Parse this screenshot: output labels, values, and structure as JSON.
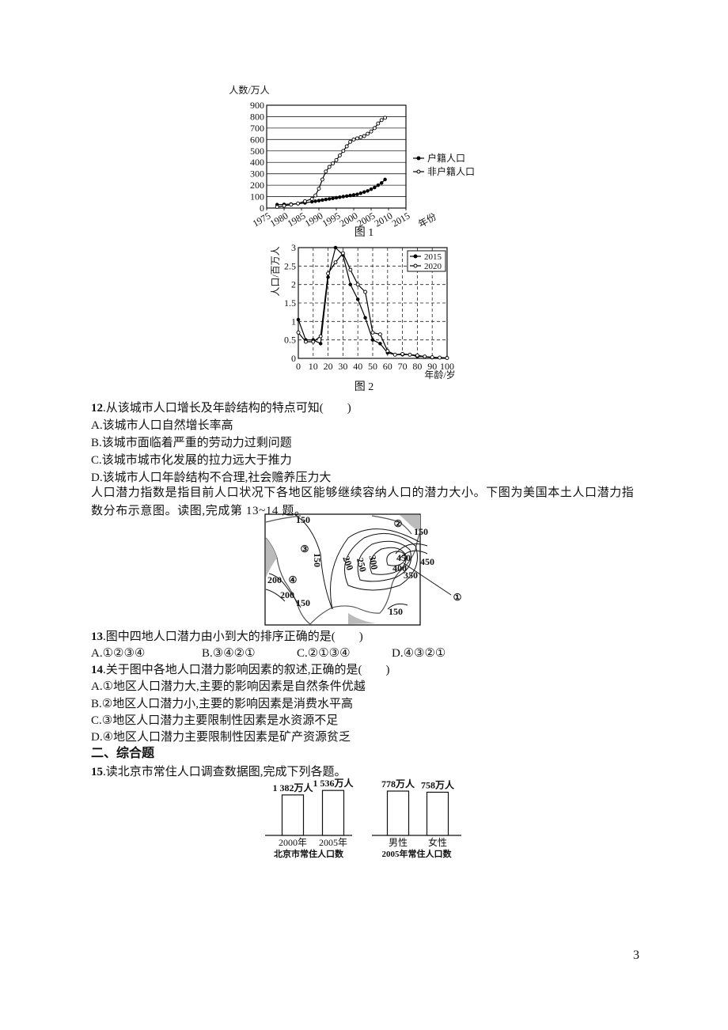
{
  "chart_data": [
    {
      "type": "line",
      "y_label": "人数/万人",
      "x_label": "年份",
      "caption": "图 1",
      "x": [
        1978,
        1980,
        1982,
        1984,
        1986,
        1988,
        1989,
        1990,
        1991,
        1992,
        1993,
        1994,
        1995,
        1996,
        1997,
        1998,
        1999,
        2000,
        2001,
        2002,
        2003,
        2004,
        2005,
        2006,
        2007,
        2008,
        2009
      ],
      "series": [
        {
          "name": "户籍人口",
          "color": "#000000",
          "marker": "filled",
          "values": [
            30,
            32,
            35,
            38,
            45,
            55,
            60,
            65,
            70,
            75,
            80,
            85,
            90,
            95,
            100,
            105,
            110,
            115,
            120,
            130,
            140,
            150,
            165,
            180,
            200,
            220,
            250
          ]
        },
        {
          "name": "非户籍人口",
          "color": "#000000",
          "marker": "open",
          "values": [
            10,
            20,
            30,
            40,
            60,
            80,
            110,
            170,
            250,
            320,
            360,
            390,
            420,
            460,
            500,
            540,
            580,
            600,
            610,
            620,
            630,
            650,
            670,
            700,
            740,
            770,
            790
          ]
        }
      ],
      "xlim": [
        1975,
        2015
      ],
      "xticks": [
        1975,
        1980,
        1985,
        1990,
        1995,
        2000,
        2005,
        2010,
        2015
      ],
      "ylim": [
        0,
        900
      ],
      "yticks": [
        0,
        100,
        200,
        300,
        400,
        500,
        600,
        700,
        800,
        900
      ],
      "grid": "y",
      "grid_style": "solid",
      "legend": "right"
    },
    {
      "type": "line",
      "y_label": "人口/百万人",
      "x_label": "年龄/岁",
      "caption": "图 2",
      "x": [
        0,
        5,
        10,
        15,
        20,
        25,
        30,
        35,
        40,
        45,
        50,
        55,
        60,
        65,
        70,
        75,
        80,
        85,
        90,
        95,
        100
      ],
      "series": [
        {
          "name": "2015",
          "color": "#000000",
          "marker": "filled",
          "values": [
            1.05,
            0.5,
            0.5,
            0.4,
            2.2,
            3.0,
            2.8,
            2.0,
            1.6,
            1.1,
            0.5,
            0.4,
            0.15,
            0.1,
            0.1,
            0.1,
            0.05,
            0.05,
            0.02,
            0.02,
            0.01
          ]
        },
        {
          "name": "2020",
          "color": "#000000",
          "marker": "open",
          "values": [
            0.7,
            0.45,
            0.45,
            0.6,
            2.3,
            2.6,
            2.85,
            2.4,
            2.0,
            1.8,
            0.7,
            0.65,
            0.2,
            0.1,
            0.12,
            0.1,
            0.08,
            0.05,
            0.03,
            0.02,
            0.01
          ]
        }
      ],
      "xlim": [
        0,
        100
      ],
      "xticks": [
        0,
        10,
        20,
        30,
        40,
        50,
        60,
        70,
        80,
        90,
        100
      ],
      "ylim": [
        0,
        3
      ],
      "yticks": [
        0,
        0.5,
        1,
        1.5,
        2,
        2.5,
        3
      ],
      "grid": "both",
      "grid_style": "dashed",
      "legend": "top-right"
    },
    {
      "type": "bar",
      "caption": "北京市常住人口数",
      "categories": [
        "2000年",
        "2005年"
      ],
      "values": [
        1382,
        1536
      ],
      "value_labels": [
        "1 382万人",
        "1 536万人"
      ],
      "color": "#ffffff"
    },
    {
      "type": "bar",
      "caption": "2005年常住人口数",
      "categories": [
        "男性",
        "女性"
      ],
      "values": [
        778,
        758
      ],
      "value_labels": [
        "778万人",
        "758万人"
      ],
      "color": "#ffffff"
    }
  ],
  "document": {
    "q12": {
      "number": "12",
      "text": ".从该城市人口增长及年龄结构的特点可知(　　)",
      "options": [
        "A.该城市人口自然增长率高",
        "B.该城市面临着严重的劳动力过剩问题",
        "C.该城市城市化发展的拉力远大于推力",
        "D.该城市人口年龄结构不合理,社会赡养压力大"
      ]
    },
    "passage": "人口潜力指数是指目前人口状况下各地区能够继续容纳人口的潜力大小。下图为美国本土人口潜力指数分布示意图。读图,完成第 13~14 题。",
    "map": {
      "labels": [
        "150",
        "②",
        "150",
        "③",
        "150",
        "200",
        "250",
        "300",
        "450",
        "450",
        "400",
        "350",
        "200",
        "④",
        "200",
        "150",
        "150",
        "①"
      ]
    },
    "q13": {
      "number": "13",
      "text": ".图中四地人口潜力由小到大的排序正确的是(　　)",
      "options": [
        "A.①②③④",
        "B.③④②①",
        "C.②①③④",
        "D.④③②①"
      ]
    },
    "q14": {
      "number": "14",
      "text": ".关于图中各地人口潜力影响因素的叙述,正确的是(　　)",
      "options": [
        "A.①地区人口潜力大,主要的影响因素是自然条件优越",
        "B.②地区人口潜力小,主要的影响因素是消费水平高",
        "C.③地区人口潜力主要限制性因素是水资源不足",
        "D.④地区人口潜力主要限制性因素是矿产资源贫乏"
      ]
    },
    "section": "二、综合题",
    "q15": {
      "number": "15",
      "text": ".读北京市常住人口调查数据图,完成下列各题。"
    },
    "page_number": "3"
  }
}
